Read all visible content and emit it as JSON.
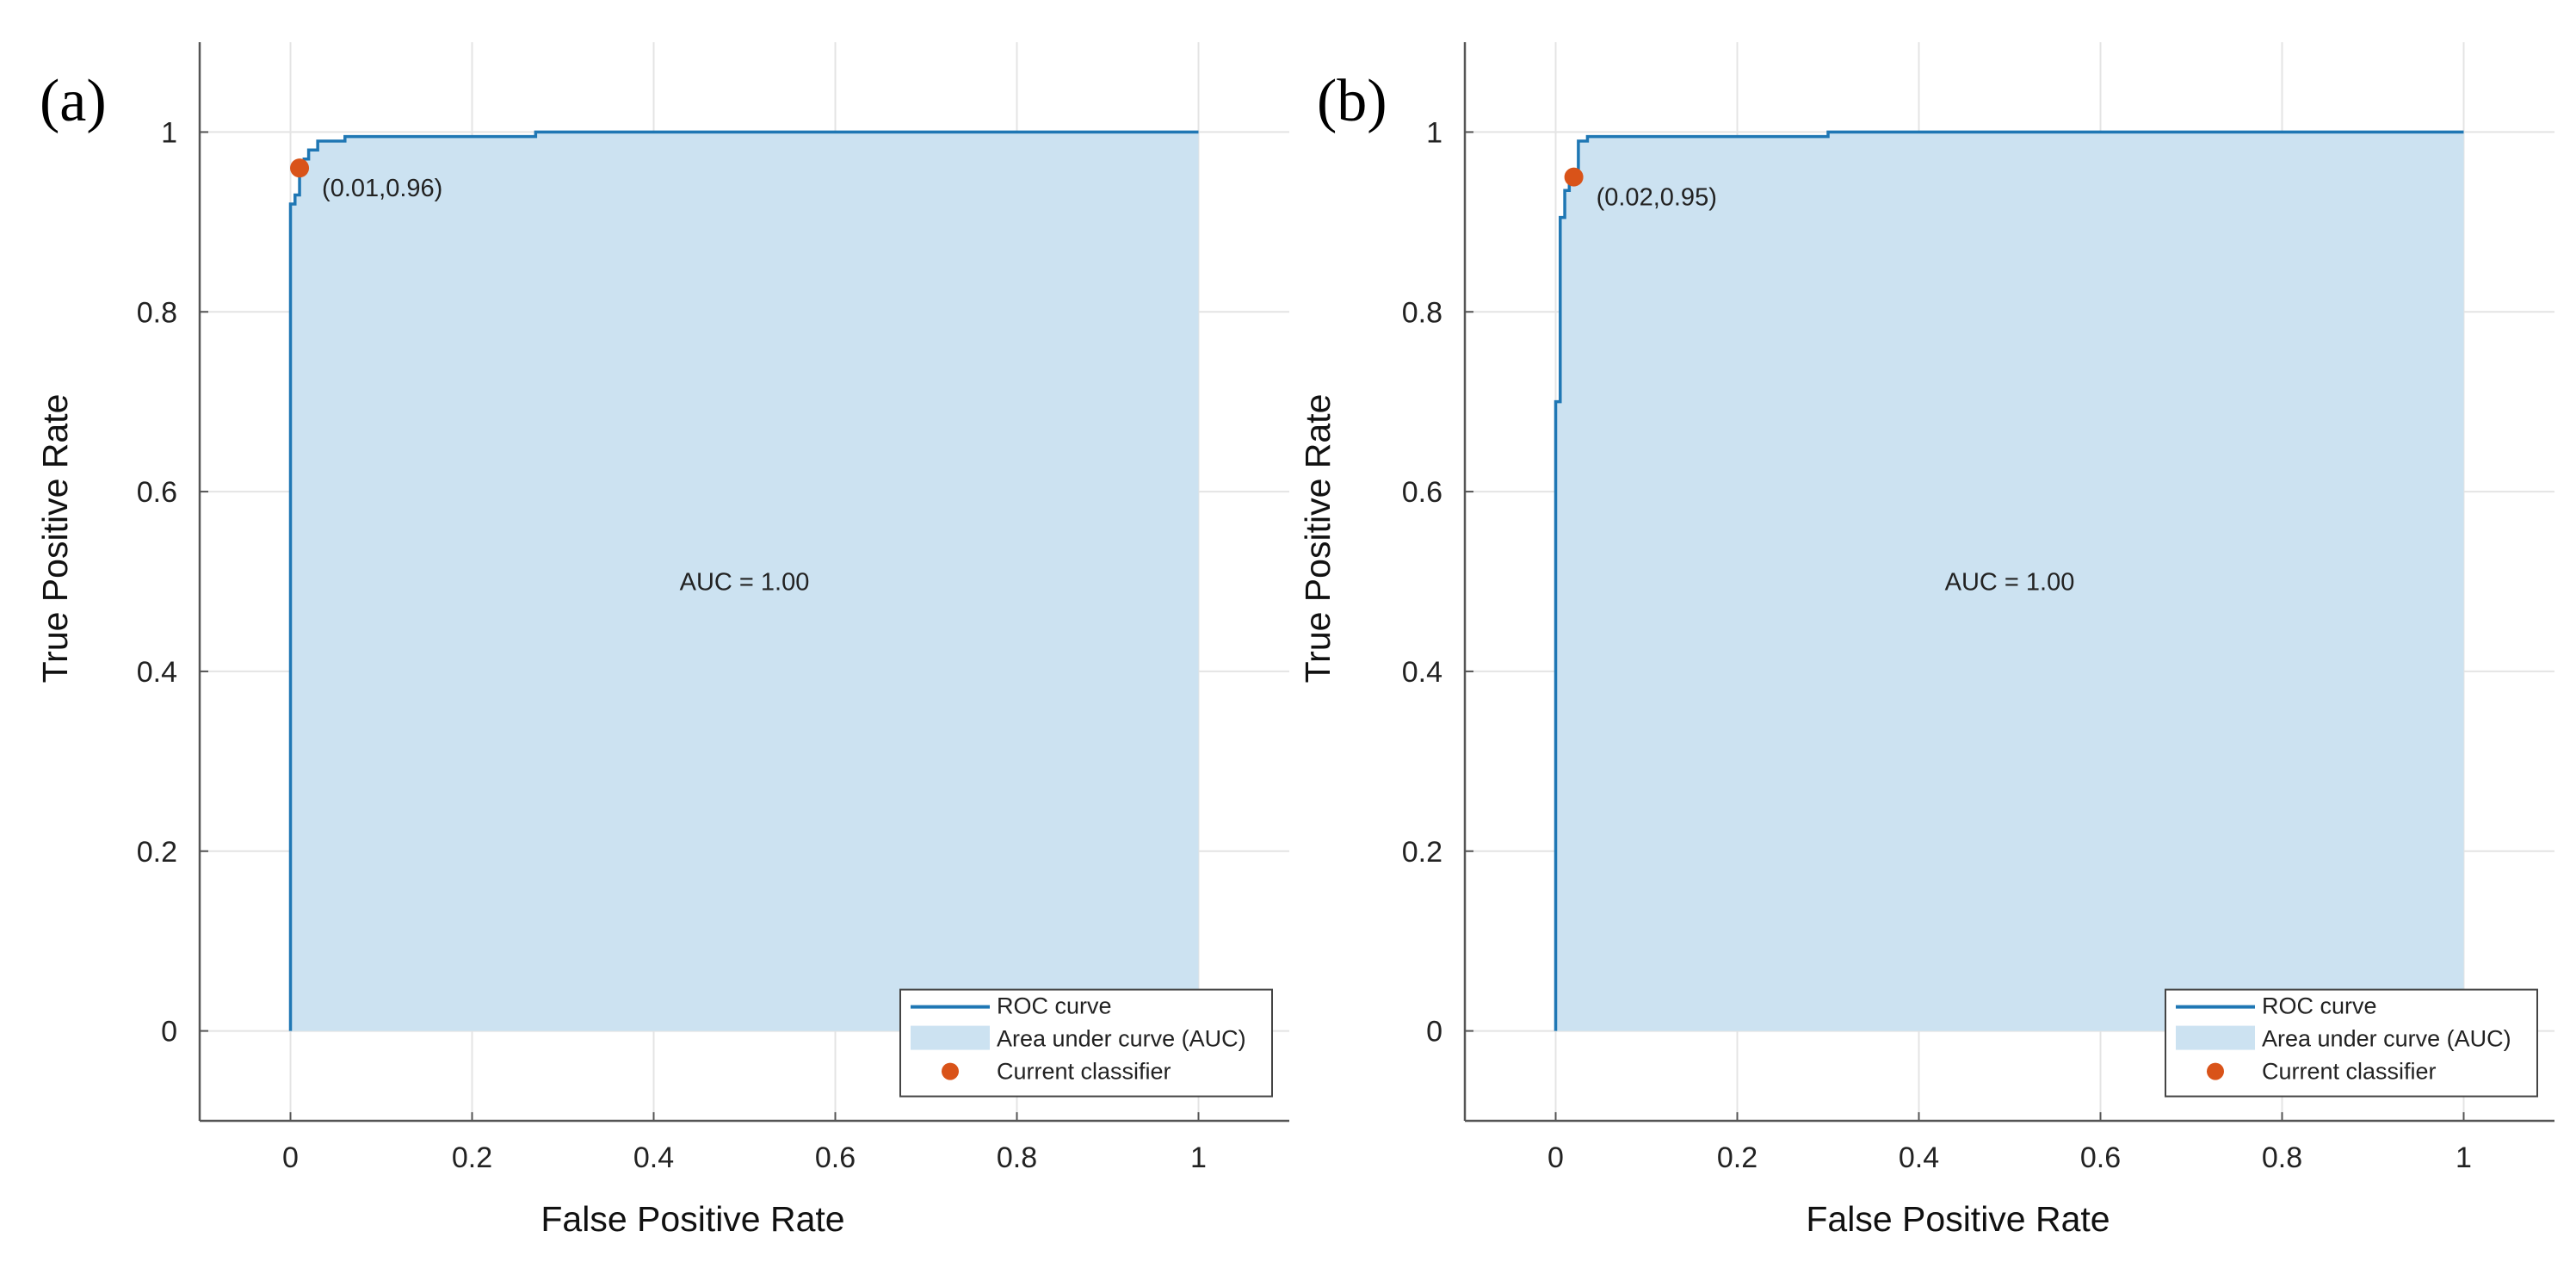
{
  "colors": {
    "roc_line": "#1f77b4",
    "auc_fill": "#cce2f1",
    "marker": "#d95319",
    "grid": "#e4e4e4",
    "axis": "#555555",
    "legend_border": "#444444"
  },
  "chart_data": [
    {
      "type": "line",
      "panel_label": "(a)",
      "xlabel": "False Positive Rate",
      "ylabel": "True  Positive Rate",
      "xlim": [
        -0.1,
        1.1
      ],
      "ylim": [
        -0.1,
        1.1
      ],
      "xticks": [
        0,
        0.2,
        0.4,
        0.6,
        0.8,
        1
      ],
      "xtick_labels": [
        "0",
        "0.2",
        "0.4",
        "0.6",
        "0.8",
        "1"
      ],
      "yticks": [
        0,
        0.2,
        0.4,
        0.6,
        0.8,
        1
      ],
      "ytick_labels": [
        "0",
        "0.2",
        "0.4",
        "0.6",
        "0.8",
        "1"
      ],
      "grid": true,
      "series": [
        {
          "name": "ROC curve",
          "x": [
            0,
            0,
            0.005,
            0.005,
            0.01,
            0.01,
            0.015,
            0.015,
            0.02,
            0.02,
            0.03,
            0.03,
            0.06,
            0.06,
            0.27,
            0.27,
            1
          ],
          "y": [
            0,
            0.92,
            0.92,
            0.93,
            0.93,
            0.96,
            0.96,
            0.97,
            0.97,
            0.98,
            0.98,
            0.99,
            0.99,
            0.995,
            0.995,
            1,
            1
          ]
        }
      ],
      "auc_label": "AUC = 1.00",
      "auc_label_pos": [
        0.5,
        0.5
      ],
      "classifier_point": [
        0.01,
        0.96
      ],
      "classifier_label": "(0.01,0.96)",
      "legend": [
        "ROC curve",
        "Area under curve (AUC)",
        "Current classifier"
      ],
      "legend_location": "bottom-right"
    },
    {
      "type": "line",
      "panel_label": "(b)",
      "xlabel": "False Positive Rate",
      "ylabel": "True  Positive Rate",
      "xlim": [
        -0.1,
        1.1
      ],
      "ylim": [
        -0.1,
        1.1
      ],
      "xticks": [
        0,
        0.2,
        0.4,
        0.6,
        0.8,
        1
      ],
      "xtick_labels": [
        "0",
        "0.2",
        "0.4",
        "0.6",
        "0.8",
        "1"
      ],
      "yticks": [
        0,
        0.2,
        0.4,
        0.6,
        0.8,
        1
      ],
      "ytick_labels": [
        "0",
        "0.2",
        "0.4",
        "0.6",
        "0.8",
        "1"
      ],
      "grid": true,
      "series": [
        {
          "name": "ROC curve",
          "x": [
            0,
            0,
            0.005,
            0.005,
            0.01,
            0.01,
            0.015,
            0.015,
            0.02,
            0.02,
            0.025,
            0.025,
            0.035,
            0.035,
            0.3,
            0.3,
            1
          ],
          "y": [
            0,
            0.7,
            0.7,
            0.905,
            0.905,
            0.935,
            0.935,
            0.945,
            0.945,
            0.95,
            0.95,
            0.99,
            0.99,
            0.995,
            0.995,
            1,
            1
          ]
        }
      ],
      "auc_label": "AUC = 1.00",
      "auc_label_pos": [
        0.5,
        0.5
      ],
      "classifier_point": [
        0.02,
        0.95
      ],
      "classifier_label": "(0.02,0.95)",
      "legend": [
        "ROC curve",
        "Area under curve (AUC)",
        "Current classifier"
      ],
      "legend_location": "bottom-right"
    }
  ]
}
